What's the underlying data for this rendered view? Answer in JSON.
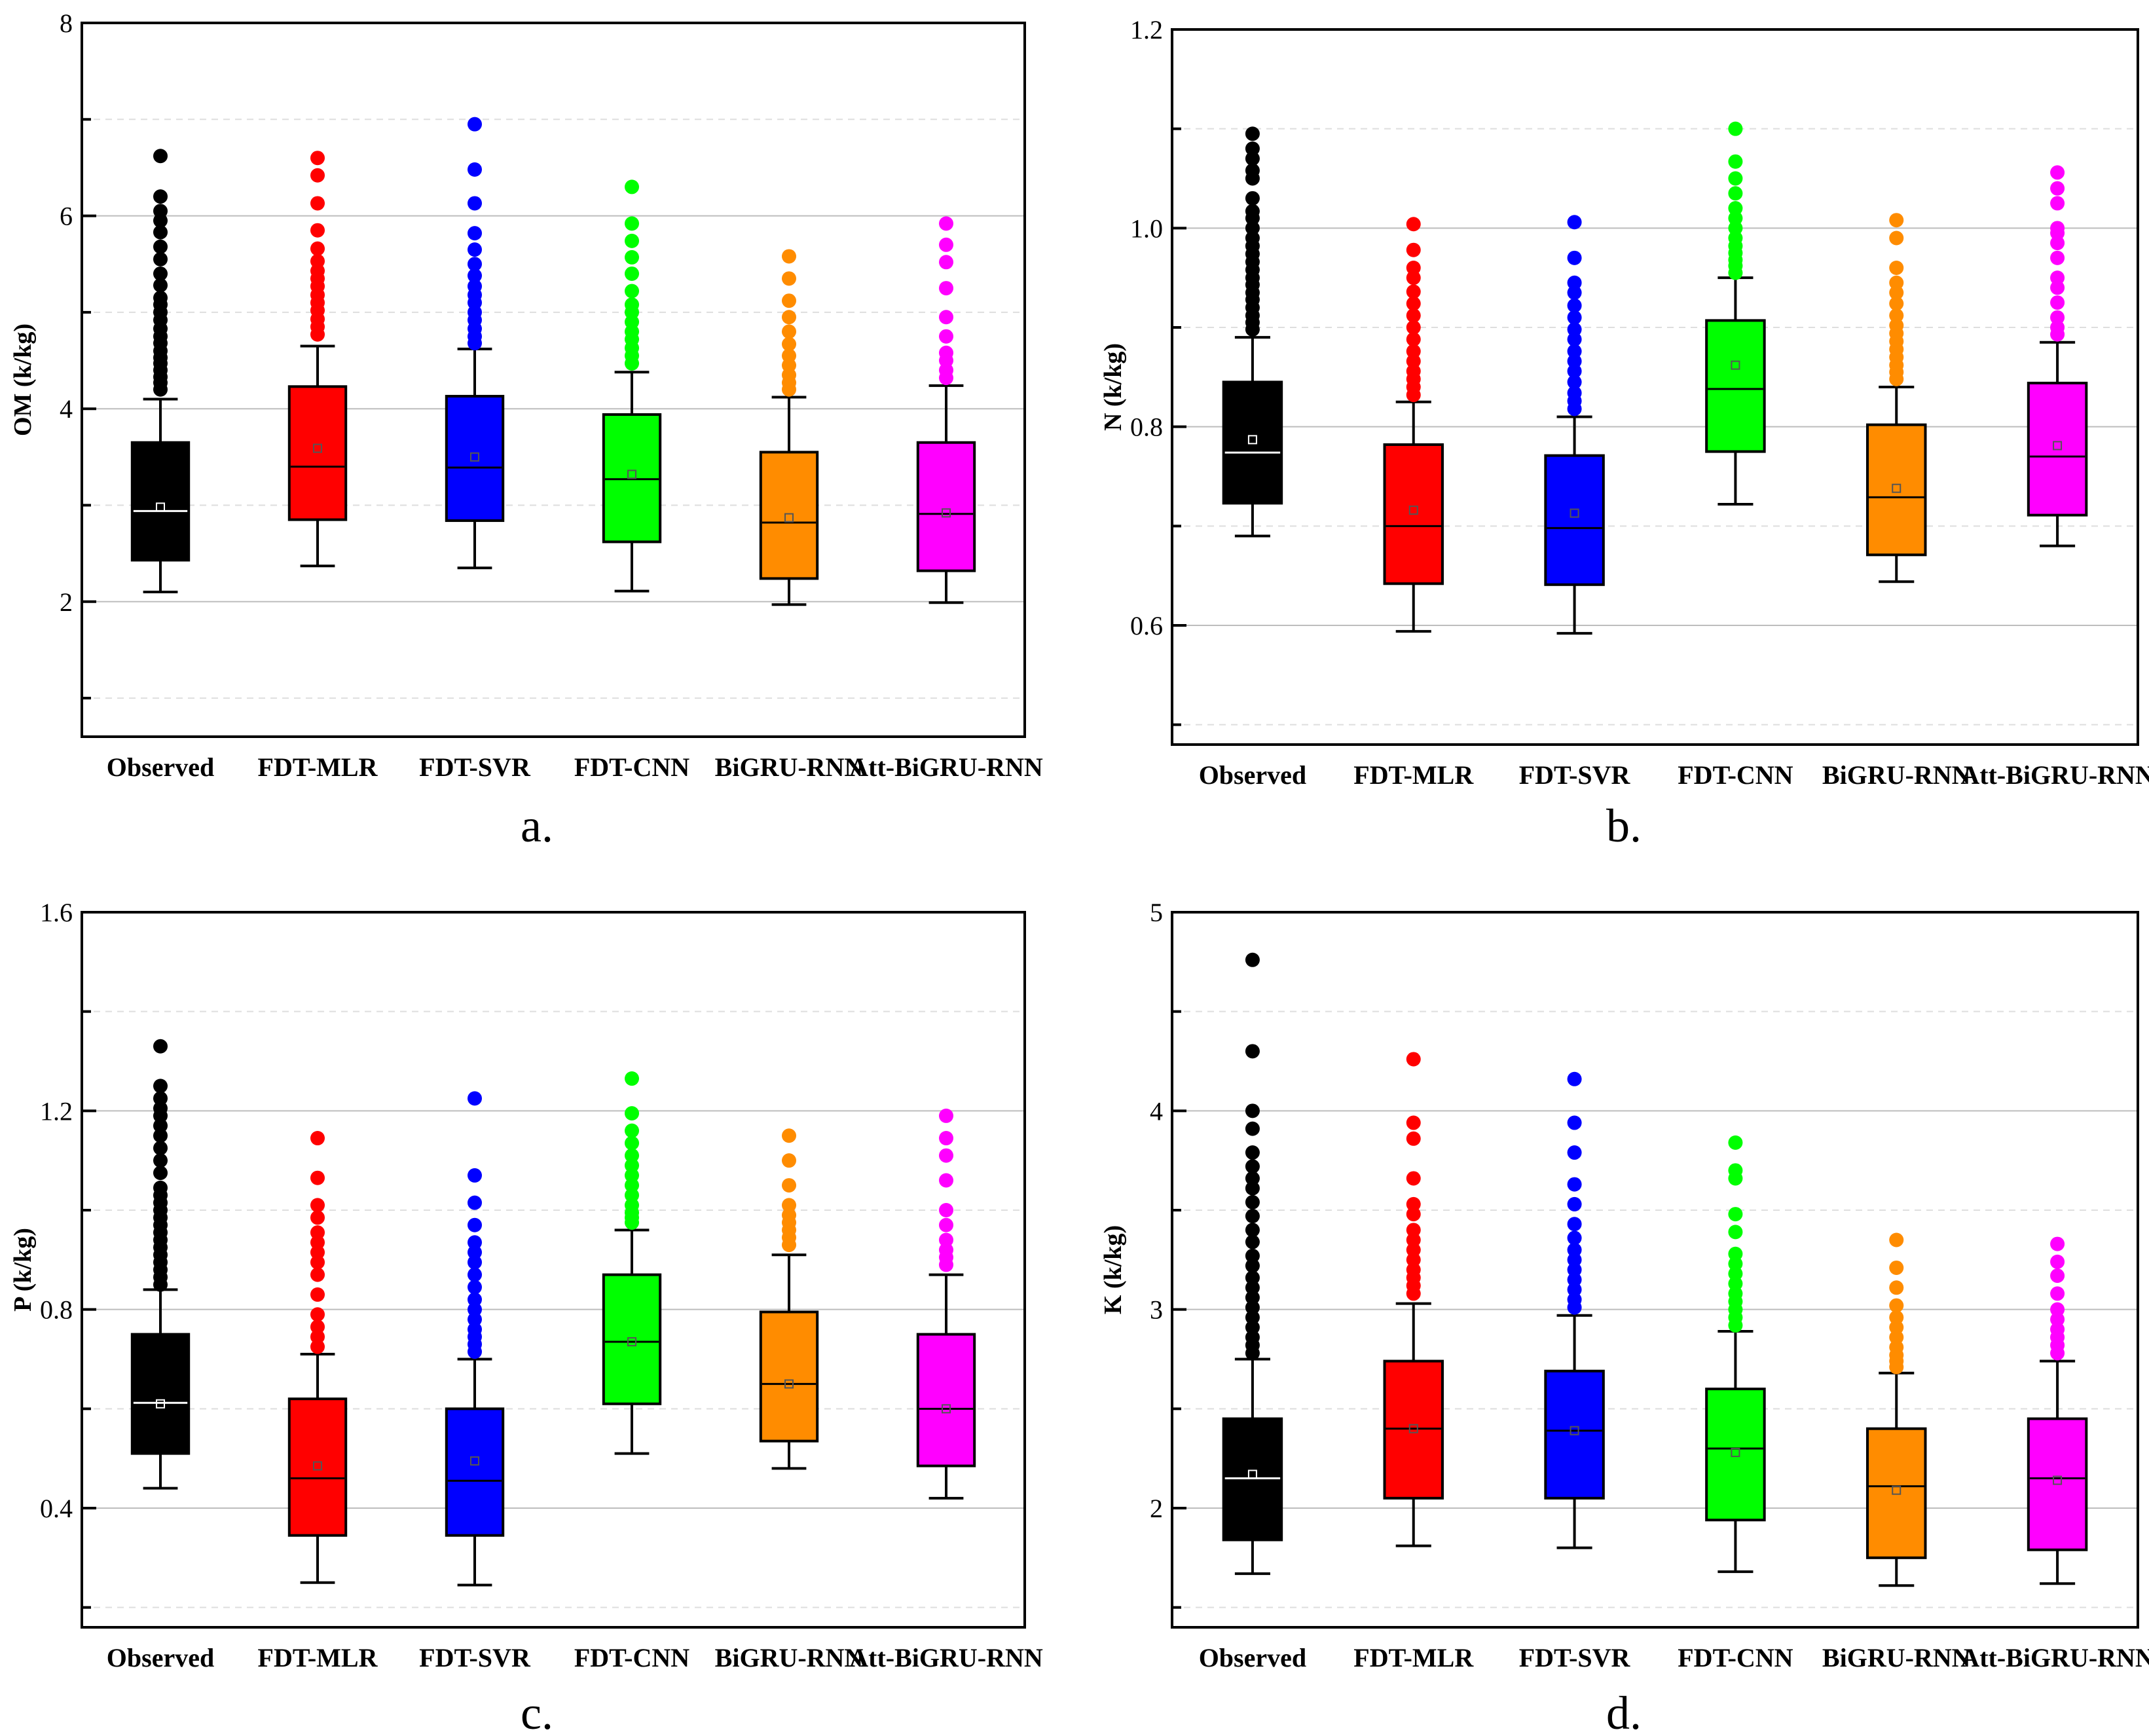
{
  "colors": {
    "Observed": "#000000",
    "FDT-MLR": "#ff0000",
    "FDT-SVR": "#0000ff",
    "FDT-CNN": "#00ff00",
    "BiGRU-RNN": "#ff8c00",
    "Att-BiGRU-RNN": "#ff00ff"
  },
  "chart_data": [
    {
      "type": "box",
      "panel_label": "a.",
      "ylabel": "OM (k/kg)",
      "ylim": [
        0.6,
        8
      ],
      "yticks": [
        2,
        4,
        6,
        8
      ],
      "ytick_labels": [
        "2",
        "4",
        "6",
        "8"
      ],
      "categories": [
        "Observed",
        "FDT-MLR",
        "FDT-SVR",
        "FDT-CNN",
        "BiGRU-RNN",
        "Att-BiGRU-RNN"
      ],
      "series": [
        {
          "name": "Observed",
          "whisker_low": 2.1,
          "q1": 2.43,
          "median": 2.94,
          "q3": 3.65,
          "whisker_high": 4.1,
          "mean": 2.98,
          "outliers": [
            4.2,
            4.27,
            4.33,
            4.4,
            4.47,
            4.53,
            4.6,
            4.68,
            4.75,
            4.83,
            4.92,
            5.0,
            5.08,
            5.15,
            5.28,
            5.4,
            5.55,
            5.68,
            5.83,
            5.95,
            6.05,
            6.2,
            6.62
          ]
        },
        {
          "name": "FDT-MLR",
          "whisker_low": 2.37,
          "q1": 2.85,
          "median": 3.4,
          "q3": 4.23,
          "whisker_high": 4.65,
          "mean": 3.59,
          "outliers": [
            4.77,
            4.85,
            4.93,
            5.02,
            5.1,
            5.18,
            5.27,
            5.35,
            5.43,
            5.53,
            5.66,
            5.85,
            6.13,
            6.42,
            6.6
          ]
        },
        {
          "name": "FDT-SVR",
          "whisker_low": 2.35,
          "q1": 2.84,
          "median": 3.39,
          "q3": 4.13,
          "whisker_high": 4.62,
          "mean": 3.5,
          "outliers": [
            4.68,
            4.75,
            4.83,
            4.92,
            5.0,
            5.1,
            5.18,
            5.27,
            5.38,
            5.5,
            5.65,
            5.82,
            6.13,
            6.48,
            6.95
          ]
        },
        {
          "name": "FDT-CNN",
          "whisker_low": 2.11,
          "q1": 2.62,
          "median": 3.27,
          "q3": 3.94,
          "whisker_high": 4.38,
          "mean": 3.32,
          "outliers": [
            4.47,
            4.55,
            4.63,
            4.72,
            4.8,
            4.9,
            5.0,
            5.08,
            5.22,
            5.4,
            5.57,
            5.74,
            5.92,
            6.3
          ]
        },
        {
          "name": "BiGRU-RNN",
          "whisker_low": 1.97,
          "q1": 2.24,
          "median": 2.82,
          "q3": 3.55,
          "whisker_high": 4.12,
          "mean": 2.87,
          "outliers": [
            4.2,
            4.27,
            4.35,
            4.45,
            4.55,
            4.67,
            4.8,
            4.95,
            5.12,
            5.35,
            5.58
          ]
        },
        {
          "name": "Att-BiGRU-RNN",
          "whisker_low": 1.99,
          "q1": 2.32,
          "median": 2.91,
          "q3": 3.65,
          "whisker_high": 4.24,
          "mean": 2.92,
          "outliers": [
            4.32,
            4.4,
            4.5,
            4.58,
            4.75,
            4.95,
            5.25,
            5.52,
            5.7,
            5.92
          ]
        }
      ]
    },
    {
      "type": "box",
      "panel_label": "b.",
      "ylabel": "N  (k/kg)",
      "ylim": [
        0.48,
        1.2
      ],
      "yticks": [
        0.6,
        0.8,
        1.0,
        1.2
      ],
      "ytick_labels": [
        "0.6",
        "0.8",
        "1.0",
        "1.2"
      ],
      "categories": [
        "Observed",
        "FDT-MLR",
        "FDT-SVR",
        "FDT-CNN",
        "BiGRU-RNN",
        "Att-BiGRU-RNN"
      ],
      "series": [
        {
          "name": "Observed",
          "whisker_low": 0.69,
          "q1": 0.723,
          "median": 0.774,
          "q3": 0.845,
          "whisker_high": 0.89,
          "mean": 0.787,
          "outliers": [
            0.898,
            0.905,
            0.912,
            0.92,
            0.928,
            0.935,
            0.943,
            0.95,
            0.958,
            0.966,
            0.974,
            0.982,
            0.99,
            1.0,
            1.01,
            1.017,
            1.03,
            1.05,
            1.058,
            1.07,
            1.08,
            1.095
          ]
        },
        {
          "name": "FDT-MLR",
          "whisker_low": 0.594,
          "q1": 0.642,
          "median": 0.7,
          "q3": 0.782,
          "whisker_high": 0.825,
          "mean": 0.716,
          "outliers": [
            0.832,
            0.84,
            0.848,
            0.856,
            0.866,
            0.876,
            0.888,
            0.9,
            0.912,
            0.924,
            0.936,
            0.95,
            0.96,
            0.978,
            1.004
          ]
        },
        {
          "name": "FDT-SVR",
          "whisker_low": 0.592,
          "q1": 0.641,
          "median": 0.698,
          "q3": 0.771,
          "whisker_high": 0.81,
          "mean": 0.713,
          "outliers": [
            0.818,
            0.826,
            0.834,
            0.845,
            0.856,
            0.866,
            0.876,
            0.888,
            0.898,
            0.91,
            0.922,
            0.935,
            0.945,
            0.97,
            1.006
          ]
        },
        {
          "name": "FDT-CNN",
          "whisker_low": 0.722,
          "q1": 0.775,
          "median": 0.838,
          "q3": 0.907,
          "whisker_high": 0.95,
          "mean": 0.862,
          "outliers": [
            0.955,
            0.962,
            0.968,
            0.975,
            0.982,
            0.99,
            1.0,
            1.01,
            1.02,
            1.035,
            1.05,
            1.067,
            1.1
          ]
        },
        {
          "name": "BiGRU-RNN",
          "whisker_low": 0.644,
          "q1": 0.671,
          "median": 0.729,
          "q3": 0.802,
          "whisker_high": 0.84,
          "mean": 0.738,
          "outliers": [
            0.848,
            0.855,
            0.862,
            0.87,
            0.878,
            0.886,
            0.894,
            0.902,
            0.912,
            0.924,
            0.935,
            0.945,
            0.96,
            0.99,
            1.008
          ]
        },
        {
          "name": "Att-BiGRU-RNN",
          "whisker_low": 0.68,
          "q1": 0.711,
          "median": 0.77,
          "q3": 0.844,
          "whisker_high": 0.885,
          "mean": 0.781,
          "outliers": [
            0.893,
            0.9,
            0.91,
            0.925,
            0.94,
            0.95,
            0.97,
            0.985,
            0.995,
            1.0,
            1.025,
            1.04,
            1.056
          ]
        }
      ]
    },
    {
      "type": "box",
      "panel_label": "c.",
      "ylabel": "P  (k/kg)",
      "ylim": [
        0.16,
        1.6
      ],
      "yticks": [
        0.4,
        0.8,
        1.2,
        1.6
      ],
      "ytick_labels": [
        "0.4",
        "0.8",
        "1.2",
        "1.6"
      ],
      "categories": [
        "Observed",
        "FDT-MLR",
        "FDT-SVR",
        "FDT-CNN",
        "BiGRU-RNN",
        "Att-BiGRU-RNN"
      ],
      "series": [
        {
          "name": "Observed",
          "whisker_low": 0.44,
          "q1": 0.51,
          "median": 0.612,
          "q3": 0.75,
          "whisker_high": 0.84,
          "mean": 0.61,
          "outliers": [
            0.85,
            0.865,
            0.88,
            0.895,
            0.91,
            0.925,
            0.94,
            0.955,
            0.97,
            0.985,
            1.0,
            1.015,
            1.03,
            1.045,
            1.075,
            1.1,
            1.125,
            1.15,
            1.17,
            1.19,
            1.205,
            1.225,
            1.25,
            1.33
          ]
        },
        {
          "name": "FDT-MLR",
          "whisker_low": 0.25,
          "q1": 0.345,
          "median": 0.46,
          "q3": 0.62,
          "whisker_high": 0.71,
          "mean": 0.485,
          "outliers": [
            0.725,
            0.745,
            0.765,
            0.79,
            0.83,
            0.87,
            0.895,
            0.915,
            0.935,
            0.955,
            0.985,
            1.01,
            1.065,
            1.145
          ]
        },
        {
          "name": "FDT-SVR",
          "whisker_low": 0.245,
          "q1": 0.345,
          "median": 0.455,
          "q3": 0.6,
          "whisker_high": 0.7,
          "mean": 0.495,
          "outliers": [
            0.715,
            0.73,
            0.745,
            0.76,
            0.78,
            0.8,
            0.82,
            0.845,
            0.87,
            0.895,
            0.915,
            0.935,
            0.97,
            1.015,
            1.07,
            1.225
          ]
        },
        {
          "name": "FDT-CNN",
          "whisker_low": 0.51,
          "q1": 0.61,
          "median": 0.735,
          "q3": 0.87,
          "whisker_high": 0.96,
          "mean": 0.735,
          "outliers": [
            0.975,
            0.985,
            0.995,
            1.01,
            1.03,
            1.05,
            1.07,
            1.09,
            1.11,
            1.135,
            1.16,
            1.195,
            1.265
          ]
        },
        {
          "name": "BiGRU-RNN",
          "whisker_low": 0.48,
          "q1": 0.535,
          "median": 0.65,
          "q3": 0.795,
          "whisker_high": 0.91,
          "mean": 0.65,
          "outliers": [
            0.93,
            0.945,
            0.96,
            0.975,
            0.99,
            1.01,
            1.05,
            1.1,
            1.15
          ]
        },
        {
          "name": "Att-BiGRU-RNN",
          "whisker_low": 0.42,
          "q1": 0.485,
          "median": 0.6,
          "q3": 0.75,
          "whisker_high": 0.87,
          "mean": 0.6,
          "outliers": [
            0.89,
            0.905,
            0.92,
            0.94,
            0.97,
            1.0,
            1.06,
            1.11,
            1.145,
            1.19
          ]
        }
      ]
    },
    {
      "type": "box",
      "panel_label": "d.",
      "ylabel": "K (k/kg)",
      "ylim": [
        1.4,
        5
      ],
      "yticks": [
        2,
        3,
        4,
        5
      ],
      "ytick_labels": [
        "2",
        "3",
        "4",
        "5"
      ],
      "categories": [
        "Observed",
        "FDT-MLR",
        "FDT-SVR",
        "FDT-CNN",
        "BiGRU-RNN",
        "Att-BiGRU-RNN"
      ],
      "series": [
        {
          "name": "Observed",
          "whisker_low": 1.67,
          "q1": 1.84,
          "median": 2.15,
          "q3": 2.45,
          "whisker_high": 2.75,
          "mean": 2.17,
          "outliers": [
            2.78,
            2.82,
            2.86,
            2.91,
            2.96,
            3.01,
            3.06,
            3.11,
            3.16,
            3.22,
            3.27,
            3.34,
            3.4,
            3.47,
            3.54,
            3.61,
            3.66,
            3.72,
            3.79,
            3.91,
            4.0,
            4.3,
            4.76
          ]
        },
        {
          "name": "FDT-MLR",
          "whisker_low": 1.81,
          "q1": 2.05,
          "median": 2.4,
          "q3": 2.74,
          "whisker_high": 3.03,
          "mean": 2.4,
          "outliers": [
            3.08,
            3.12,
            3.16,
            3.2,
            3.25,
            3.3,
            3.35,
            3.4,
            3.48,
            3.53,
            3.66,
            3.86,
            3.94,
            4.26
          ]
        },
        {
          "name": "FDT-SVR",
          "whisker_low": 1.8,
          "q1": 2.05,
          "median": 2.39,
          "q3": 2.69,
          "whisker_high": 2.97,
          "mean": 2.39,
          "outliers": [
            3.01,
            3.05,
            3.1,
            3.15,
            3.2,
            3.25,
            3.3,
            3.36,
            3.43,
            3.53,
            3.63,
            3.79,
            3.94,
            4.16
          ]
        },
        {
          "name": "FDT-CNN",
          "whisker_low": 1.68,
          "q1": 1.94,
          "median": 2.3,
          "q3": 2.6,
          "whisker_high": 2.89,
          "mean": 2.28,
          "outliers": [
            2.92,
            2.96,
            3.0,
            3.04,
            3.08,
            3.13,
            3.18,
            3.23,
            3.28,
            3.39,
            3.48,
            3.66,
            3.7,
            3.84
          ]
        },
        {
          "name": "BiGRU-RNN",
          "whisker_low": 1.61,
          "q1": 1.75,
          "median": 2.11,
          "q3": 2.4,
          "whisker_high": 2.68,
          "mean": 2.09,
          "outliers": [
            2.71,
            2.74,
            2.77,
            2.81,
            2.86,
            2.91,
            2.96,
            3.02,
            3.11,
            3.21,
            3.35
          ]
        },
        {
          "name": "Att-BiGRU-RNN",
          "whisker_low": 1.62,
          "q1": 1.79,
          "median": 2.15,
          "q3": 2.45,
          "whisker_high": 2.74,
          "mean": 2.14,
          "outliers": [
            2.78,
            2.82,
            2.86,
            2.9,
            2.95,
            3.0,
            3.08,
            3.17,
            3.24,
            3.33
          ]
        }
      ]
    }
  ]
}
